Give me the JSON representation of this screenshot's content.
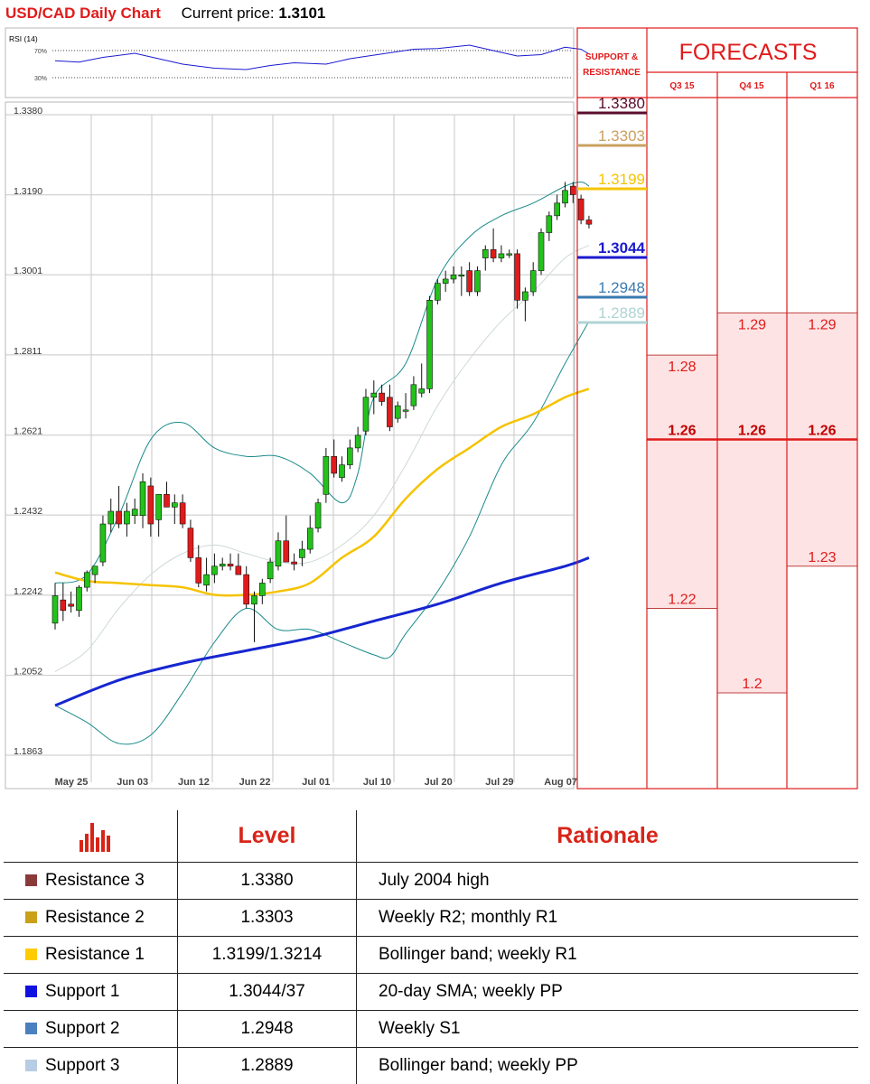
{
  "header": {
    "pair_title": "USD/CAD Daily Chart",
    "price_label": "Current price:",
    "price_value": "1.3101"
  },
  "rsi": {
    "label": "RSI (14)",
    "level_high": "70%",
    "level_low": "30%"
  },
  "colors": {
    "up_candle": "#22c21a",
    "down_candle": "#e01b1b",
    "sma_short": "#f5c300",
    "sma_long": "#1626d0",
    "bollinger": "#1a8a8a",
    "forecast_red": "#e01b1b",
    "forecast_fill": "#fde3e3"
  },
  "chart_data": [
    {
      "type": "candlestick",
      "title": "USD/CAD Daily Chart",
      "yticks": [
        "1.3380",
        "1.3190",
        "1.3001",
        "1.2811",
        "1.2621",
        "1.2432",
        "1.2242",
        "1.2052",
        "1.1863"
      ],
      "ylim": [
        1.1863,
        1.338
      ],
      "xticks": [
        "May 25",
        "Jun 03",
        "Jun 12",
        "Jun 22",
        "Jul 01",
        "Jul 10",
        "Jul 20",
        "Jul 29",
        "Aug 07"
      ],
      "grid": true,
      "candles": [
        {
          "o": 1.2165,
          "h": 1.226,
          "l": 1.215,
          "c": 1.223
        },
        {
          "o": 1.222,
          "h": 1.226,
          "l": 1.217,
          "c": 1.2195
        },
        {
          "o": 1.221,
          "h": 1.224,
          "l": 1.219,
          "c": 1.2205
        },
        {
          "o": 1.2195,
          "h": 1.2255,
          "l": 1.218,
          "c": 1.225
        },
        {
          "o": 1.225,
          "h": 1.229,
          "l": 1.224,
          "c": 1.2285
        },
        {
          "o": 1.228,
          "h": 1.23,
          "l": 1.226,
          "c": 1.23
        },
        {
          "o": 1.231,
          "h": 1.242,
          "l": 1.23,
          "c": 1.24
        },
        {
          "o": 1.24,
          "h": 1.246,
          "l": 1.238,
          "c": 1.243
        },
        {
          "o": 1.243,
          "h": 1.249,
          "l": 1.239,
          "c": 1.24
        },
        {
          "o": 1.24,
          "h": 1.245,
          "l": 1.237,
          "c": 1.243
        },
        {
          "o": 1.242,
          "h": 1.246,
          "l": 1.24,
          "c": 1.2435
        },
        {
          "o": 1.242,
          "h": 1.252,
          "l": 1.239,
          "c": 1.25
        },
        {
          "o": 1.249,
          "h": 1.251,
          "l": 1.237,
          "c": 1.24
        },
        {
          "o": 1.241,
          "h": 1.247,
          "l": 1.237,
          "c": 1.247
        },
        {
          "o": 1.247,
          "h": 1.25,
          "l": 1.244,
          "c": 1.244
        },
        {
          "o": 1.244,
          "h": 1.247,
          "l": 1.24,
          "c": 1.245
        },
        {
          "o": 1.245,
          "h": 1.247,
          "l": 1.239,
          "c": 1.24
        },
        {
          "o": 1.239,
          "h": 1.241,
          "l": 1.231,
          "c": 1.232
        },
        {
          "o": 1.232,
          "h": 1.235,
          "l": 1.225,
          "c": 1.226
        },
        {
          "o": 1.2255,
          "h": 1.232,
          "l": 1.224,
          "c": 1.228
        },
        {
          "o": 1.228,
          "h": 1.233,
          "l": 1.226,
          "c": 1.23
        },
        {
          "o": 1.23,
          "h": 1.232,
          "l": 1.229,
          "c": 1.2305
        },
        {
          "o": 1.2305,
          "h": 1.233,
          "l": 1.229,
          "c": 1.23
        },
        {
          "o": 1.23,
          "h": 1.233,
          "l": 1.228,
          "c": 1.228
        },
        {
          "o": 1.228,
          "h": 1.23,
          "l": 1.22,
          "c": 1.221
        },
        {
          "o": 1.221,
          "h": 1.224,
          "l": 1.212,
          "c": 1.223
        },
        {
          "o": 1.223,
          "h": 1.227,
          "l": 1.221,
          "c": 1.226
        },
        {
          "o": 1.227,
          "h": 1.232,
          "l": 1.226,
          "c": 1.231
        },
        {
          "o": 1.23,
          "h": 1.238,
          "l": 1.229,
          "c": 1.236
        },
        {
          "o": 1.236,
          "h": 1.242,
          "l": 1.231,
          "c": 1.231
        },
        {
          "o": 1.231,
          "h": 1.233,
          "l": 1.229,
          "c": 1.2305
        },
        {
          "o": 1.232,
          "h": 1.236,
          "l": 1.23,
          "c": 1.234
        },
        {
          "o": 1.234,
          "h": 1.242,
          "l": 1.233,
          "c": 1.239
        },
        {
          "o": 1.239,
          "h": 1.246,
          "l": 1.238,
          "c": 1.245
        },
        {
          "o": 1.247,
          "h": 1.258,
          "l": 1.245,
          "c": 1.256
        },
        {
          "o": 1.256,
          "h": 1.26,
          "l": 1.251,
          "c": 1.252
        },
        {
          "o": 1.251,
          "h": 1.256,
          "l": 1.25,
          "c": 1.254
        },
        {
          "o": 1.254,
          "h": 1.26,
          "l": 1.253,
          "c": 1.258
        },
        {
          "o": 1.258,
          "h": 1.263,
          "l": 1.257,
          "c": 1.261
        },
        {
          "o": 1.262,
          "h": 1.272,
          "l": 1.261,
          "c": 1.27
        },
        {
          "o": 1.27,
          "h": 1.274,
          "l": 1.266,
          "c": 1.271
        },
        {
          "o": 1.271,
          "h": 1.273,
          "l": 1.268,
          "c": 1.269
        },
        {
          "o": 1.27,
          "h": 1.273,
          "l": 1.262,
          "c": 1.263
        },
        {
          "o": 1.265,
          "h": 1.269,
          "l": 1.264,
          "c": 1.268
        },
        {
          "o": 1.267,
          "h": 1.271,
          "l": 1.265,
          "c": 1.267
        },
        {
          "o": 1.268,
          "h": 1.275,
          "l": 1.267,
          "c": 1.273
        },
        {
          "o": 1.271,
          "h": 1.278,
          "l": 1.27,
          "c": 1.272
        },
        {
          "o": 1.272,
          "h": 1.294,
          "l": 1.271,
          "c": 1.293
        },
        {
          "o": 1.293,
          "h": 1.298,
          "l": 1.292,
          "c": 1.297
        },
        {
          "o": 1.297,
          "h": 1.3,
          "l": 1.295,
          "c": 1.298
        },
        {
          "o": 1.298,
          "h": 1.301,
          "l": 1.297,
          "c": 1.299
        },
        {
          "o": 1.299,
          "h": 1.301,
          "l": 1.294,
          "c": 1.299
        },
        {
          "o": 1.3,
          "h": 1.302,
          "l": 1.294,
          "c": 1.295
        },
        {
          "o": 1.295,
          "h": 1.301,
          "l": 1.294,
          "c": 1.3
        },
        {
          "o": 1.303,
          "h": 1.306,
          "l": 1.3,
          "c": 1.305
        },
        {
          "o": 1.305,
          "h": 1.31,
          "l": 1.302,
          "c": 1.303
        },
        {
          "o": 1.303,
          "h": 1.306,
          "l": 1.302,
          "c": 1.304
        },
        {
          "o": 1.304,
          "h": 1.305,
          "l": 1.303,
          "c": 1.304
        },
        {
          "o": 1.304,
          "h": 1.305,
          "l": 1.291,
          "c": 1.293
        },
        {
          "o": 1.293,
          "h": 1.296,
          "l": 1.288,
          "c": 1.295
        },
        {
          "o": 1.295,
          "h": 1.302,
          "l": 1.294,
          "c": 1.3
        },
        {
          "o": 1.3,
          "h": 1.31,
          "l": 1.299,
          "c": 1.309
        },
        {
          "o": 1.309,
          "h": 1.314,
          "l": 1.307,
          "c": 1.313
        },
        {
          "o": 1.313,
          "h": 1.318,
          "l": 1.312,
          "c": 1.316
        },
        {
          "o": 1.316,
          "h": 1.321,
          "l": 1.315,
          "c": 1.319
        },
        {
          "o": 1.32,
          "h": 1.321,
          "l": 1.316,
          "c": 1.318
        },
        {
          "o": 1.317,
          "h": 1.318,
          "l": 1.311,
          "c": 1.312
        },
        {
          "o": 1.312,
          "h": 1.313,
          "l": 1.31,
          "c": 1.311
        }
      ],
      "indicators": {
        "sma_yellow": [
          [
            0,
            1.2285
          ],
          [
            4,
            1.2265
          ],
          [
            8,
            1.226
          ],
          [
            12,
            1.2255
          ],
          [
            16,
            1.225
          ],
          [
            20,
            1.2232
          ],
          [
            24,
            1.2232
          ],
          [
            28,
            1.224
          ],
          [
            32,
            1.226
          ],
          [
            36,
            1.232
          ],
          [
            40,
            1.237
          ],
          [
            44,
            1.246
          ],
          [
            48,
            1.253
          ],
          [
            52,
            1.258
          ],
          [
            56,
            1.263
          ],
          [
            60,
            1.266
          ],
          [
            64,
            1.27
          ],
          [
            67,
            1.272
          ]
        ],
        "sma_blue": [
          [
            0,
            1.197
          ],
          [
            8,
            1.203
          ],
          [
            16,
            1.207
          ],
          [
            24,
            1.21
          ],
          [
            32,
            1.213
          ],
          [
            40,
            1.217
          ],
          [
            48,
            1.221
          ],
          [
            56,
            1.226
          ],
          [
            64,
            1.23
          ],
          [
            67,
            1.232
          ]
        ],
        "bollinger_upper": [
          [
            0,
            1.226
          ],
          [
            4,
            1.228
          ],
          [
            8,
            1.242
          ],
          [
            12,
            1.26
          ],
          [
            16,
            1.264
          ],
          [
            20,
            1.258
          ],
          [
            24,
            1.256
          ],
          [
            28,
            1.256
          ],
          [
            32,
            1.252
          ],
          [
            36,
            1.245
          ],
          [
            38,
            1.252
          ],
          [
            40,
            1.27
          ],
          [
            44,
            1.278
          ],
          [
            48,
            1.298
          ],
          [
            52,
            1.308
          ],
          [
            56,
            1.313
          ],
          [
            60,
            1.316
          ],
          [
            64,
            1.32
          ],
          [
            66,
            1.321
          ],
          [
            67,
            1.32
          ]
        ],
        "bollinger_mid": [
          [
            0,
            1.205
          ],
          [
            4,
            1.21
          ],
          [
            8,
            1.22
          ],
          [
            12,
            1.228
          ],
          [
            16,
            1.233
          ],
          [
            20,
            1.235
          ],
          [
            24,
            1.233
          ],
          [
            28,
            1.231
          ],
          [
            32,
            1.231
          ],
          [
            36,
            1.235
          ],
          [
            40,
            1.242
          ],
          [
            44,
            1.254
          ],
          [
            48,
            1.268
          ],
          [
            52,
            1.279
          ],
          [
            56,
            1.288
          ],
          [
            60,
            1.295
          ],
          [
            64,
            1.303
          ],
          [
            67,
            1.306
          ]
        ],
        "bollinger_lower": [
          [
            0,
            1.197
          ],
          [
            4,
            1.193
          ],
          [
            8,
            1.188
          ],
          [
            12,
            1.19
          ],
          [
            16,
            1.2
          ],
          [
            20,
            1.212
          ],
          [
            24,
            1.22
          ],
          [
            28,
            1.215
          ],
          [
            32,
            1.215
          ],
          [
            36,
            1.212
          ],
          [
            40,
            1.209
          ],
          [
            42,
            1.2085
          ],
          [
            44,
            1.214
          ],
          [
            48,
            1.224
          ],
          [
            52,
            1.237
          ],
          [
            56,
            1.254
          ],
          [
            60,
            1.264
          ],
          [
            64,
            1.278
          ],
          [
            67,
            1.288
          ]
        ],
        "rsi": [
          [
            0,
            55
          ],
          [
            3,
            53
          ],
          [
            6,
            60
          ],
          [
            10,
            66
          ],
          [
            13,
            58
          ],
          [
            16,
            50
          ],
          [
            20,
            44
          ],
          [
            24,
            42
          ],
          [
            27,
            48
          ],
          [
            30,
            52
          ],
          [
            34,
            50
          ],
          [
            37,
            58
          ],
          [
            41,
            65
          ],
          [
            45,
            72
          ],
          [
            48,
            73
          ],
          [
            52,
            78
          ],
          [
            55,
            70
          ],
          [
            58,
            62
          ],
          [
            61,
            64
          ],
          [
            64,
            75
          ],
          [
            66,
            72
          ],
          [
            67,
            65
          ]
        ]
      }
    },
    {
      "type": "table",
      "title": "FORECASTS",
      "sr_header": "SUPPORT & RESISTANCE",
      "periods": [
        "Q3 15",
        "Q4 15",
        "Q1 16"
      ],
      "levels": [
        {
          "value": "1.3380",
          "color": "#5a0d2c"
        },
        {
          "value": "1.3303",
          "color": "#caa060"
        },
        {
          "value": "1.3199",
          "color": "#f5c300"
        },
        {
          "value": "1.3044",
          "color": "#1a1ad0"
        },
        {
          "value": "1.2948",
          "color": "#3a7ab0"
        },
        {
          "value": "1.2889",
          "color": "#b0d3d3"
        }
      ],
      "median": {
        "value": 1.26,
        "label": "1.26"
      },
      "forecasts": [
        {
          "high": 1.28,
          "high_label": "1.28",
          "low": 1.22,
          "low_label": "1.22"
        },
        {
          "high": 1.29,
          "high_label": "1.29",
          "low": 1.2,
          "low_label": "1.2"
        },
        {
          "high": 1.29,
          "high_label": "1.29",
          "low": 1.23,
          "low_label": "1.23"
        }
      ]
    }
  ],
  "table": {
    "headers": {
      "level": "Level",
      "rationale": "Rationale"
    },
    "rows": [
      {
        "name": "Resistance 3",
        "level": "1.3380",
        "rationale": "July 2004 high",
        "color": "#8b3a3a"
      },
      {
        "name": "Resistance 2",
        "level": "1.3303",
        "rationale": "Weekly R2; monthly R1",
        "color": "#c9a018"
      },
      {
        "name": "Resistance 1",
        "level": "1.3199/1.3214",
        "rationale": "Bollinger band; weekly R1",
        "color": "#ffcc00"
      },
      {
        "name": "Support 1",
        "level": "1.3044/37",
        "rationale": "20-day SMA; weekly PP",
        "color": "#1010e0"
      },
      {
        "name": "Support 2",
        "level": "1.2948",
        "rationale": "Weekly S1",
        "color": "#4a7fc0"
      },
      {
        "name": "Support 3",
        "level": "1.2889",
        "rationale": "Bollinger band; weekly PP",
        "color": "#b8cce4"
      }
    ]
  }
}
